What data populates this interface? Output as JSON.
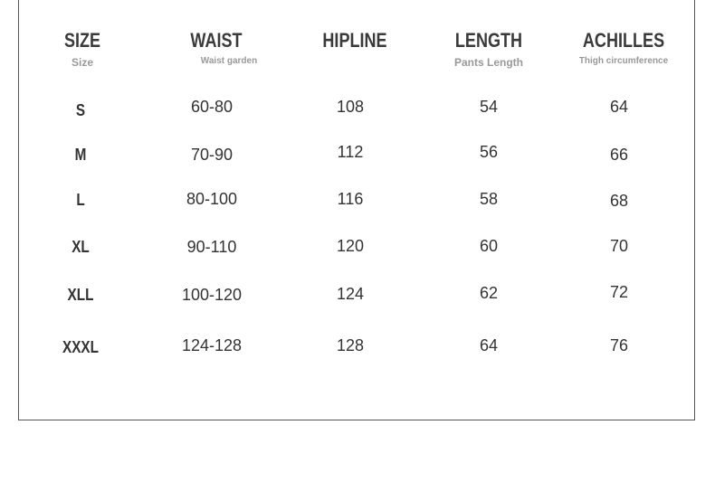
{
  "headers": [
    {
      "title": "SIZE",
      "subtitle": "Size"
    },
    {
      "title": "WAIST",
      "subtitle": "Waist garden"
    },
    {
      "title": "HIPLINE",
      "subtitle": ""
    },
    {
      "title": "LENGTH",
      "subtitle": "Pants Length"
    },
    {
      "title": "ACHILLES",
      "subtitle": "Thigh circumference"
    }
  ],
  "rows": [
    [
      "S",
      "60-80",
      "108",
      "54",
      "64"
    ],
    [
      "M",
      "70-90",
      "112",
      "56",
      "66"
    ],
    [
      "L",
      "80-100",
      "116",
      "58",
      "68"
    ],
    [
      "XL",
      "90-110",
      "120",
      "60",
      "70"
    ],
    [
      "XLL",
      "100-120",
      "124",
      "62",
      "72"
    ],
    [
      "XXXL",
      "124-128",
      "128",
      "64",
      "76"
    ]
  ]
}
